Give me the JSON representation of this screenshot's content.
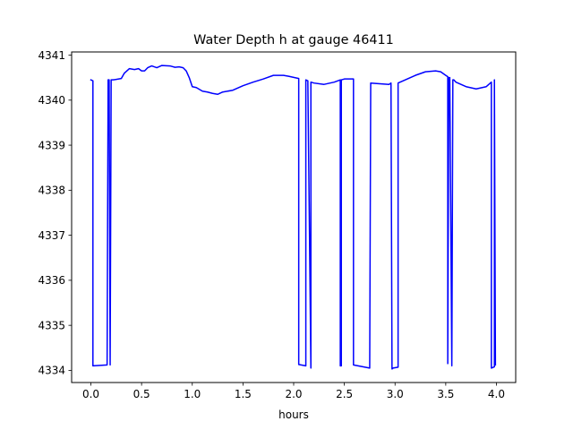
{
  "chart_data": {
    "type": "line",
    "title": "Water Depth h at gauge 46411",
    "xlabel": "hours",
    "ylabel": "",
    "xlim": [
      -0.19,
      4.19
    ],
    "ylim": [
      4333.73,
      4341.07
    ],
    "grid": false,
    "legend": "none",
    "x_ticks": [
      0.0,
      0.5,
      1.0,
      1.5,
      2.0,
      2.5,
      3.0,
      3.5,
      4.0
    ],
    "x_tick_labels": [
      "0.0",
      "0.5",
      "1.0",
      "1.5",
      "2.0",
      "2.5",
      "3.0",
      "3.5",
      "4.0"
    ],
    "y_ticks": [
      4334,
      4335,
      4336,
      4337,
      4338,
      4339,
      4340,
      4341
    ],
    "y_tick_labels": [
      "4334",
      "4335",
      "4336",
      "4337",
      "4338",
      "4339",
      "4340",
      "4341"
    ],
    "series": [
      {
        "color": "#0000ff",
        "x": [
          0.0,
          0.02,
          0.02,
          0.16,
          0.17,
          0.18,
          0.19,
          0.2,
          0.21,
          0.22,
          0.3,
          0.33,
          0.38,
          0.43,
          0.47,
          0.5,
          0.53,
          0.56,
          0.6,
          0.65,
          0.7,
          0.78,
          0.83,
          0.87,
          0.91,
          0.94,
          0.97,
          1.0,
          1.04,
          1.1,
          1.15,
          1.2,
          1.25,
          1.3,
          1.4,
          1.5,
          1.6,
          1.7,
          1.8,
          1.9,
          1.95,
          2.05,
          2.05,
          2.12,
          2.12,
          2.14,
          2.17,
          2.17,
          2.2,
          2.3,
          2.4,
          2.46,
          2.46,
          2.47,
          2.47,
          2.5,
          2.59,
          2.59,
          2.75,
          2.76,
          2.82,
          2.94,
          2.96,
          2.97,
          2.98,
          3.03,
          3.03,
          3.1,
          3.2,
          3.3,
          3.4,
          3.45,
          3.5,
          3.52,
          3.52,
          3.53,
          3.54,
          3.56,
          3.57,
          3.58,
          3.6,
          3.7,
          3.8,
          3.9,
          3.95,
          3.95,
          3.98,
          3.98,
          3.99
        ],
        "y": [
          4340.45,
          4340.43,
          4334.1,
          4334.12,
          4340.45,
          4340.45,
          4334.12,
          4340.45,
          4340.45,
          4340.45,
          4340.48,
          4340.6,
          4340.7,
          4340.68,
          4340.7,
          4340.65,
          4340.65,
          4340.72,
          4340.76,
          4340.72,
          4340.77,
          4340.76,
          4340.73,
          4340.74,
          4340.72,
          4340.65,
          4340.5,
          4340.3,
          4340.28,
          4340.2,
          4340.18,
          4340.15,
          4340.13,
          4340.18,
          4340.22,
          4340.32,
          4340.4,
          4340.47,
          4340.55,
          4340.55,
          4340.53,
          4340.48,
          4334.13,
          4334.1,
          4340.45,
          4340.43,
          4334.05,
          4340.4,
          4340.38,
          4340.35,
          4340.4,
          4340.45,
          4334.1,
          4334.1,
          4340.45,
          4340.47,
          4340.47,
          4334.12,
          4334.05,
          4340.38,
          4340.37,
          4340.35,
          4340.38,
          4334.03,
          4334.05,
          4334.07,
          4340.38,
          4340.45,
          4340.55,
          4340.63,
          4340.65,
          4340.63,
          4340.55,
          4340.52,
          4334.15,
          4340.5,
          4340.5,
          4334.1,
          4340.45,
          4340.45,
          4340.4,
          4340.3,
          4340.25,
          4340.3,
          4340.4,
          4334.05,
          4334.08,
          4340.45,
          4334.12
        ]
      }
    ]
  }
}
